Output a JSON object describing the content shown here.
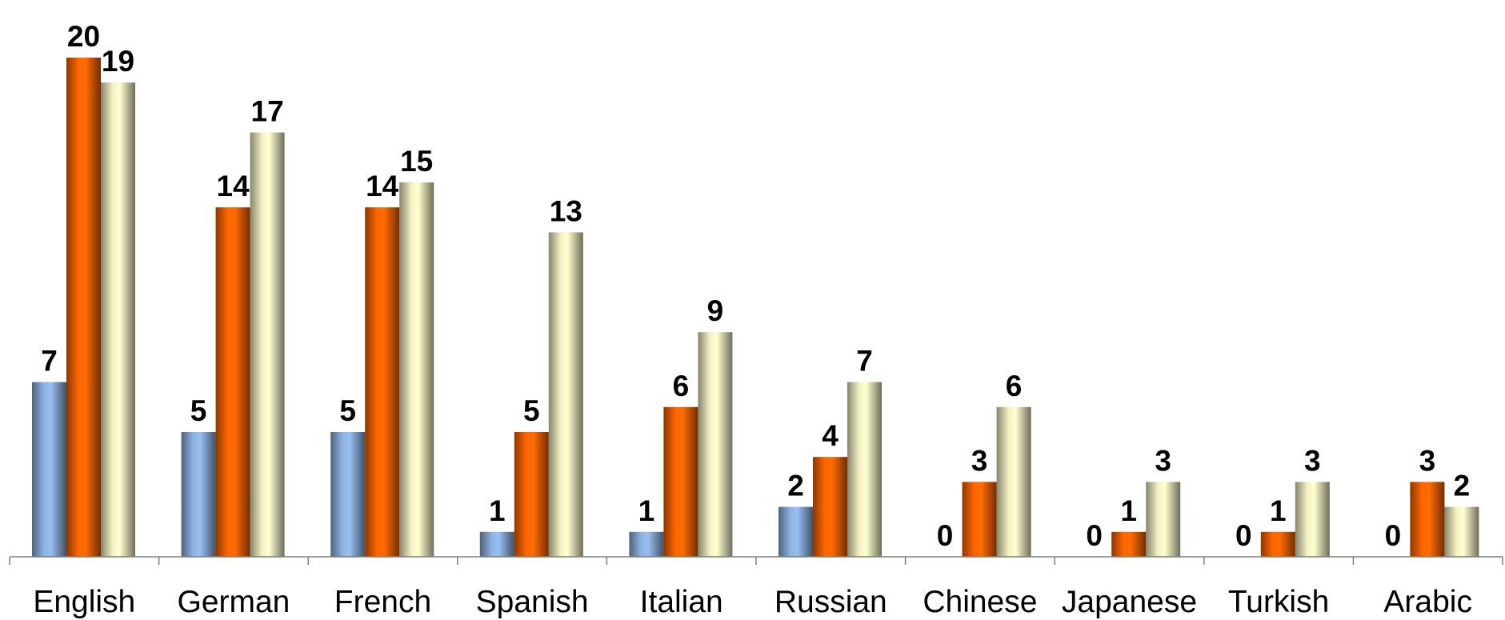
{
  "chart_data": {
    "type": "bar",
    "title": "",
    "xlabel": "",
    "ylabel": "",
    "categories": [
      "English",
      "German",
      "French",
      "Spanish",
      "Italian",
      "Russian",
      "Chinese",
      "Japanese",
      "Turkish",
      "Arabic"
    ],
    "series": [
      {
        "values": [
          7,
          5,
          5,
          1,
          1,
          2,
          0,
          0,
          0,
          0
        ],
        "color": "#8fb4e3"
      },
      {
        "values": [
          20,
          14,
          14,
          5,
          6,
          4,
          3,
          1,
          1,
          3
        ],
        "color": "#ff6600"
      },
      {
        "values": [
          19,
          17,
          15,
          13,
          9,
          7,
          6,
          3,
          3,
          2
        ],
        "color": "#f4f2c4"
      }
    ],
    "ylim": [
      0,
      20
    ],
    "grid": false,
    "legend": "none",
    "data_labels": true
  }
}
